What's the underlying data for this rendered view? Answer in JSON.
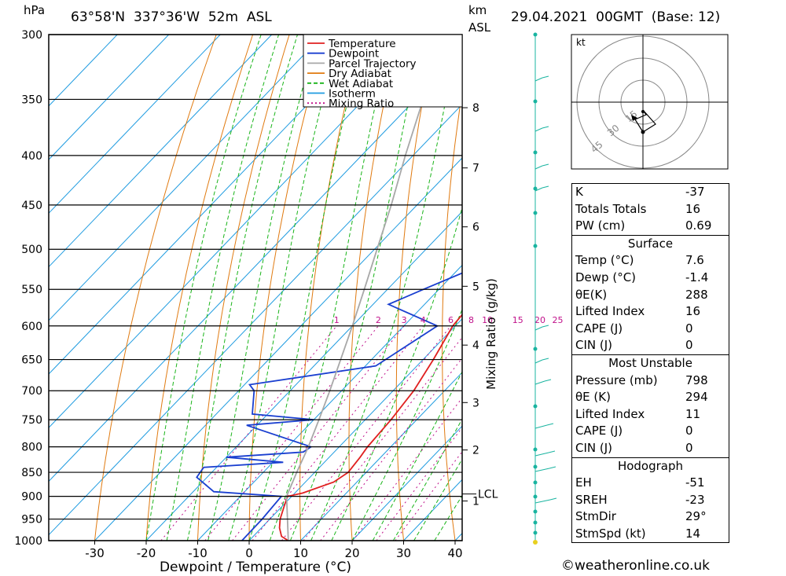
{
  "header": {
    "location": "63°58'N  337°36'W  52m  ASL",
    "date": "29.04.2021  00GMT  (Base: 12)",
    "pressure_unit": "hPa",
    "height_unit": "km",
    "height_unit2": "ASL"
  },
  "chart_data": {
    "type": "line",
    "title": "",
    "xlabel": "Dewpoint / Temperature (°C)",
    "ylabel": "hPa",
    "y2label": "Mixing Ratio (g/kg)",
    "xlim": [
      -40,
      40
    ],
    "ylim": [
      1000,
      300
    ],
    "yscale": "log",
    "x_ticks": [
      -30,
      -20,
      -10,
      0,
      10,
      20,
      30,
      40
    ],
    "pressure_levels": [
      300,
      350,
      400,
      450,
      500,
      550,
      600,
      650,
      700,
      750,
      800,
      850,
      900,
      950,
      1000
    ],
    "height_km_labels": [
      {
        "km": "8",
        "p": 357
      },
      {
        "km": "7",
        "p": 412
      },
      {
        "km": "6",
        "p": 474
      },
      {
        "km": "5",
        "p": 546
      },
      {
        "km": "4",
        "p": 628
      },
      {
        "km": "3",
        "p": 720
      },
      {
        "km": "2",
        "p": 806
      },
      {
        "km": "1",
        "p": 910
      }
    ],
    "lcl": {
      "label": "LCL",
      "p": 895
    },
    "mixing_ratio_labels": [
      "1",
      "2",
      "3",
      "4",
      "6",
      "8",
      "10",
      "15",
      "20",
      "25"
    ],
    "mixing_ratio_values": [
      1,
      2,
      3,
      4,
      6,
      8,
      10,
      15,
      20,
      25
    ],
    "legend": {
      "placement": "top-right",
      "entries": [
        "Temperature",
        "Dewpoint",
        "Parcel Trajectory",
        "Dry Adiabat",
        "Wet Adiabat",
        "Isotherm",
        "Mixing Ratio"
      ]
    },
    "colors": {
      "temperature": "#e02020",
      "dewpoint": "#1a3fd0",
      "parcel": "#a8a8a8",
      "dry_adiabat": "#e07a10",
      "wet_adiabat": "#19b419",
      "isotherm": "#1e9be0",
      "mixing_ratio": "#c0108a",
      "wind": "#19b4a0"
    },
    "series": [
      {
        "name": "Temperature",
        "points": [
          [
            1000,
            7.6
          ],
          [
            990,
            5.5
          ],
          [
            970,
            3.5
          ],
          [
            950,
            2.0
          ],
          [
            920,
            0.3
          ],
          [
            900,
            -0.8
          ],
          [
            893,
            1.5
          ],
          [
            870,
            5.5
          ],
          [
            850,
            6.5
          ],
          [
            820,
            6.0
          ],
          [
            800,
            5.5
          ],
          [
            750,
            5.0
          ],
          [
            700,
            4.0
          ],
          [
            650,
            2.0
          ],
          [
            600,
            -0.5
          ],
          [
            570,
            -1.0
          ],
          [
            550,
            -4.0
          ],
          [
            500,
            -10.0
          ],
          [
            470,
            -14.0
          ],
          [
            450,
            -14.5
          ],
          [
            430,
            -15.5
          ],
          [
            400,
            -19.5
          ],
          [
            350,
            -27.5
          ],
          [
            320,
            -33.5
          ],
          [
            300,
            -36.0
          ]
        ]
      },
      {
        "name": "Dewpoint",
        "points": [
          [
            1000,
            -1.4
          ],
          [
            950,
            -1.5
          ],
          [
            900,
            -2.0
          ],
          [
            890,
            -16.0
          ],
          [
            860,
            -22.0
          ],
          [
            840,
            -22.5
          ],
          [
            830,
            -8.0
          ],
          [
            820,
            -20.0
          ],
          [
            810,
            -6.0
          ],
          [
            800,
            -5.5
          ],
          [
            760,
            -22.0
          ],
          [
            750,
            -10.0
          ],
          [
            740,
            -23.0
          ],
          [
            700,
            -27.0
          ],
          [
            690,
            -29.0
          ],
          [
            660,
            -8.0
          ],
          [
            600,
            -3.5
          ],
          [
            570,
            -17.0
          ],
          [
            550,
            -13.0
          ],
          [
            500,
            -2.0
          ],
          [
            470,
            -1.5
          ],
          [
            450,
            -11.0
          ],
          [
            430,
            -19.0
          ],
          [
            400,
            -18.0
          ],
          [
            350,
            -16.5
          ],
          [
            300,
            -15.0
          ]
        ]
      },
      {
        "name": "Parcel Trajectory",
        "points": [
          [
            1000,
            7.6
          ],
          [
            900,
            -1.0
          ],
          [
            850,
            -3.5
          ],
          [
            800,
            -6.0
          ],
          [
            750,
            -9.0
          ],
          [
            700,
            -12.3
          ],
          [
            650,
            -16.0
          ],
          [
            600,
            -20.0
          ],
          [
            550,
            -24.5
          ],
          [
            500,
            -29.5
          ],
          [
            450,
            -35.0
          ],
          [
            400,
            -41.5
          ],
          [
            350,
            -48.5
          ],
          [
            300,
            -56.5
          ]
        ]
      }
    ]
  },
  "hodograph": {
    "unit": "kt",
    "ring_labels": [
      "15",
      "30",
      "45"
    ]
  },
  "indices": {
    "top": [
      {
        "k": "K",
        "v": "-37"
      },
      {
        "k": "Totals Totals",
        "v": "16"
      },
      {
        "k": "PW (cm)",
        "v": "0.69"
      }
    ],
    "surface": {
      "title": "Surface",
      "rows": [
        {
          "k": "Temp (°C)",
          "v": "7.6"
        },
        {
          "k": "Dewp (°C)",
          "v": "-1.4"
        },
        {
          "k": "θE(K)",
          "v": "288"
        },
        {
          "k": "Lifted Index",
          "v": "16"
        },
        {
          "k": "CAPE (J)",
          "v": "0"
        },
        {
          "k": "CIN (J)",
          "v": "0"
        }
      ]
    },
    "unstable": {
      "title": "Most Unstable",
      "rows": [
        {
          "k": "Pressure (mb)",
          "v": "798"
        },
        {
          "k": "θE (K)",
          "v": "294"
        },
        {
          "k": "Lifted Index",
          "v": "11"
        },
        {
          "k": "CAPE (J)",
          "v": "0"
        },
        {
          "k": "CIN (J)",
          "v": "0"
        }
      ]
    },
    "hodo": {
      "title": "Hodograph",
      "rows": [
        {
          "k": "EH",
          "v": "-51"
        },
        {
          "k": "SREH",
          "v": "-23"
        },
        {
          "k": "StmDir",
          "v": "29°"
        },
        {
          "k": "StmSpd (kt)",
          "v": "14"
        }
      ]
    }
  },
  "copyright": "©weatheronline.co.uk"
}
